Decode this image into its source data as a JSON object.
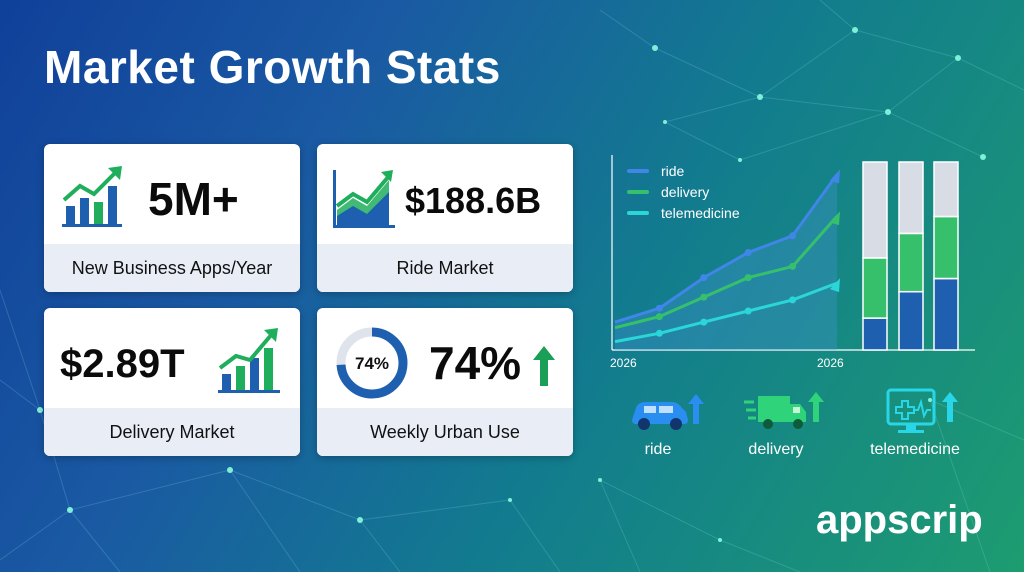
{
  "page": {
    "title": "Market Growth Stats"
  },
  "colors": {
    "ride": "#3f86e8",
    "delivery": "#37c06c",
    "telemedicine": "#2ad6d8",
    "icon_blue": "#1f5fb0",
    "icon_green": "#1fae5c",
    "bar_top": "#d8dde5"
  },
  "cards": [
    {
      "value": "5M+",
      "label": "New Business Apps/Year",
      "icon": "growth-bars-icon"
    },
    {
      "value": "$188.6B",
      "label": "Ride Market",
      "icon": "area-growth-icon"
    },
    {
      "value": "$2.89T",
      "label": "Delivery Market",
      "icon": "growth-bars-icon"
    },
    {
      "value": "74%",
      "label": "Weekly Urban Use",
      "icon": "donut-icon",
      "donut_label": "74%",
      "donut_fraction": 0.74
    }
  ],
  "chart_data": [
    {
      "type": "line",
      "legend": [
        "ride",
        "delivery",
        "telemedicine"
      ],
      "x_tick_labels": [
        "2026",
        "2026"
      ],
      "series": [
        {
          "name": "ride",
          "values": [
            1.0,
            1.5,
            2.6,
            3.5,
            4.1,
            6.3
          ]
        },
        {
          "name": "delivery",
          "values": [
            0.8,
            1.2,
            1.9,
            2.6,
            3.0,
            4.8
          ]
        },
        {
          "name": "telemedicine",
          "values": [
            0.3,
            0.6,
            1.0,
            1.4,
            1.8,
            2.4
          ]
        }
      ],
      "ylim": [
        0,
        7
      ],
      "legend_position": "top-left",
      "grid": false
    },
    {
      "type": "bar",
      "stacked": true,
      "categories": [
        "",
        "",
        ""
      ],
      "series": [
        {
          "name": "",
          "values": [
            17,
            31,
            38
          ]
        },
        {
          "name": "",
          "values": [
            32,
            31,
            33
          ]
        },
        {
          "name": "",
          "values": [
            51,
            38,
            29
          ]
        }
      ],
      "ylim": [
        0,
        100
      ]
    }
  ],
  "categories": [
    {
      "label": "ride",
      "icon": "car-icon"
    },
    {
      "label": "delivery",
      "icon": "truck-icon"
    },
    {
      "label": "telemedicine",
      "icon": "monitor-medical-icon"
    }
  ],
  "brand": "appscrip"
}
